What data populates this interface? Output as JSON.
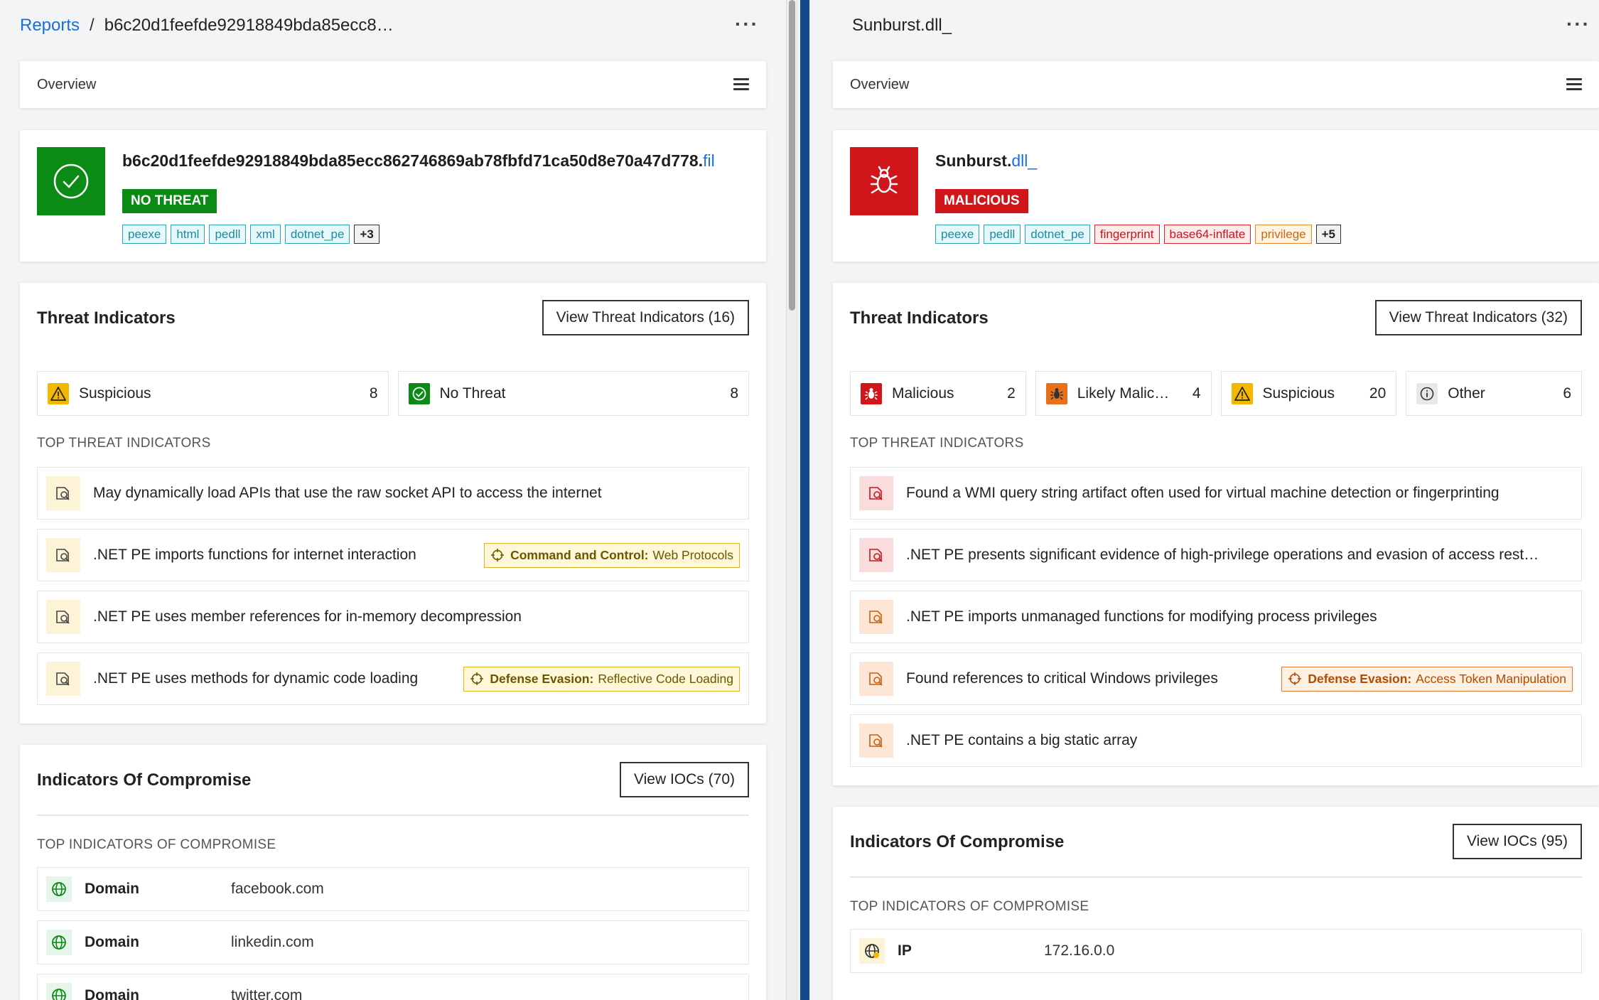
{
  "left": {
    "breadcrumb_link": "Reports",
    "breadcrumb_sep": "/",
    "breadcrumb_current": "b6c20d1feefde92918849bda85ecc8…",
    "more_label": "···",
    "overview_title": "Overview",
    "file": {
      "name": "b6c20d1feefde92918849bda85ecc862746869ab78fbfd71ca50d8e70a47d778.",
      "ext": "fil",
      "verdict": "NO THREAT",
      "verdict_color": "#0b8a15",
      "tags": [
        {
          "label": "peexe",
          "style": "teal"
        },
        {
          "label": "html",
          "style": "teal"
        },
        {
          "label": "pedll",
          "style": "teal"
        },
        {
          "label": "xml",
          "style": "teal"
        },
        {
          "label": "dotnet_pe",
          "style": "teal"
        },
        {
          "label": "+3",
          "style": "more"
        }
      ]
    },
    "threat": {
      "title": "Threat Indicators",
      "button": "View Threat Indicators (16)",
      "stats": [
        {
          "icon": "warning-icon",
          "label": "Suspicious",
          "count": "8"
        },
        {
          "icon": "check-circle-icon",
          "label": "No Threat",
          "count": "8"
        }
      ],
      "subhead": "TOP THREAT INDICATORS",
      "items": [
        {
          "text": "May dynamically load APIs that use the raw socket API to access the internet",
          "level": "suspicious"
        },
        {
          "text": ".NET PE imports functions for internet interaction",
          "level": "suspicious",
          "mitre": {
            "tactic": "Command and Control:",
            "technique": "Web Protocols",
            "style": "yellow"
          }
        },
        {
          "text": ".NET PE uses member references for in-memory decompression",
          "level": "suspicious"
        },
        {
          "text": ".NET PE uses methods for dynamic code loading",
          "level": "suspicious",
          "mitre": {
            "tactic": "Defense Evasion:",
            "technique": "Reflective Code Loading",
            "style": "yellow"
          }
        }
      ]
    },
    "ioc": {
      "title": "Indicators Of Compromise",
      "button": "View IOCs (70)",
      "subhead": "TOP INDICATORS OF COMPROMISE",
      "rows": [
        {
          "icon": "globe-icon",
          "type": "Domain",
          "value": "facebook.com"
        },
        {
          "icon": "globe-icon",
          "type": "Domain",
          "value": "linkedin.com"
        },
        {
          "icon": "globe-icon",
          "type": "Domain",
          "value": "twitter.com"
        }
      ]
    }
  },
  "right": {
    "title": "Sunburst.dll_",
    "more_label": "···",
    "overview_title": "Overview",
    "file": {
      "name": "Sunburst.",
      "ext": "dll_",
      "verdict": "MALICIOUS",
      "verdict_color": "#d0161b",
      "tags": [
        {
          "label": "peexe",
          "style": "teal"
        },
        {
          "label": "pedll",
          "style": "teal"
        },
        {
          "label": "dotnet_pe",
          "style": "teal"
        },
        {
          "label": "fingerprint",
          "style": "red"
        },
        {
          "label": "base64-inflate",
          "style": "red"
        },
        {
          "label": "privilege",
          "style": "orange"
        },
        {
          "label": "+5",
          "style": "more"
        }
      ]
    },
    "threat": {
      "title": "Threat Indicators",
      "button": "View Threat Indicators (32)",
      "stats": [
        {
          "icon": "bug-icon",
          "label": "Malicious",
          "count": "2"
        },
        {
          "icon": "bug-orange-icon",
          "label": "Likely Malic…",
          "count": "4"
        },
        {
          "icon": "warning-icon",
          "label": "Suspicious",
          "count": "20"
        },
        {
          "icon": "info-icon",
          "label": "Other",
          "count": "6"
        }
      ],
      "subhead": "TOP THREAT INDICATORS",
      "items": [
        {
          "text": "Found a WMI query string artifact often used for virtual machine detection or fingerprinting",
          "level": "malicious"
        },
        {
          "text": ".NET PE presents significant evidence of high-privilege operations and evasion of access rest…",
          "level": "malicious"
        },
        {
          "text": ".NET PE imports unmanaged functions for modifying process privileges",
          "level": "likely"
        },
        {
          "text": "Found references to critical Windows privileges",
          "level": "likely",
          "mitre": {
            "tactic": "Defense Evasion:",
            "technique": "Access Token Manipulation",
            "style": "orange"
          }
        },
        {
          "text": ".NET PE contains a big static array",
          "level": "likely"
        }
      ]
    },
    "ioc": {
      "title": "Indicators Of Compromise",
      "button": "View IOCs (95)",
      "subhead": "TOP INDICATORS OF COMPROMISE",
      "rows": [
        {
          "icon": "ip-globe-icon",
          "type": "IP",
          "value": "172.16.0.0"
        }
      ]
    }
  }
}
